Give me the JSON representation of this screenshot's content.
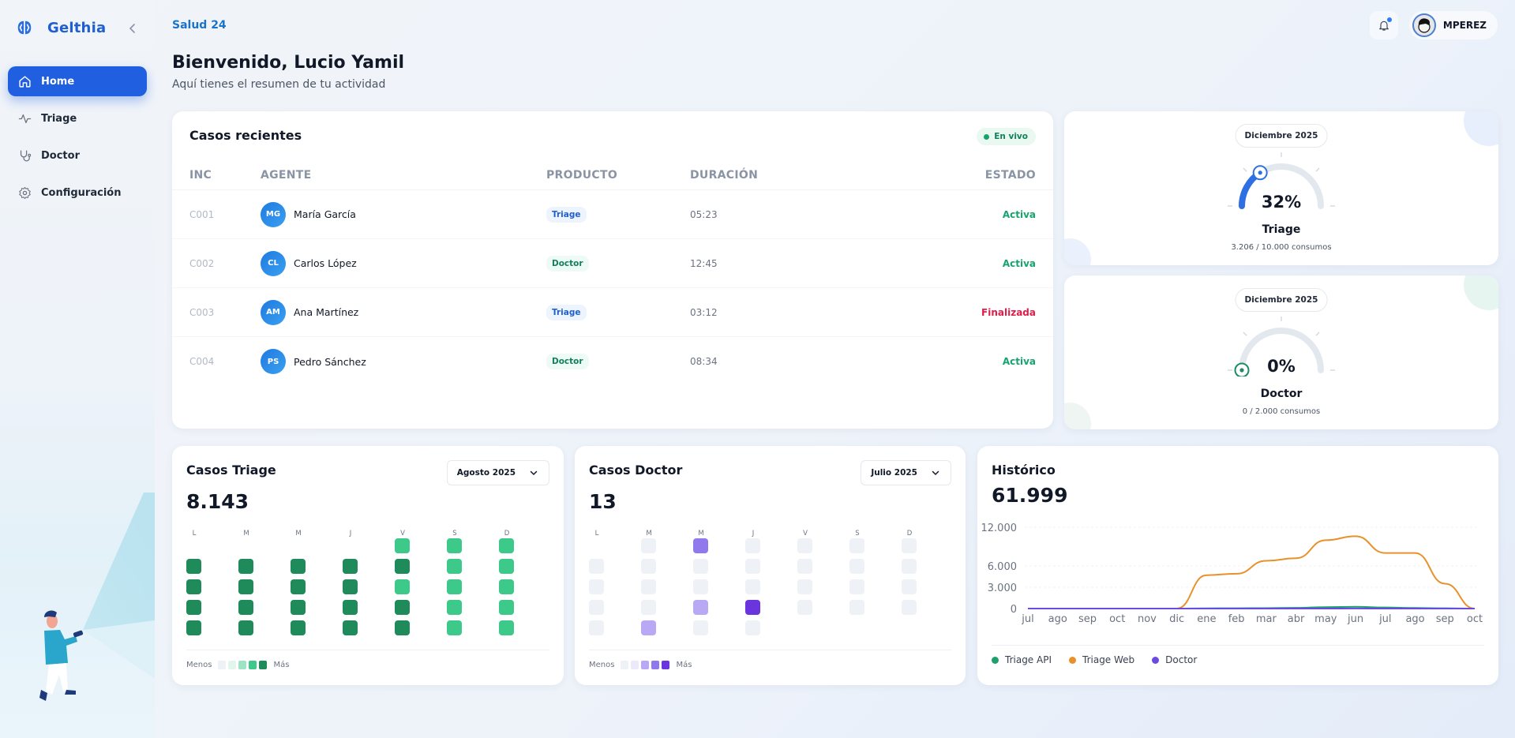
{
  "sidebar": {
    "brand": "Gelthia",
    "collapse_icon": "chevron-left-icon",
    "items": [
      {
        "label": "Home",
        "icon": "home-icon",
        "active": true
      },
      {
        "label": "Triage",
        "icon": "activity-icon",
        "active": false
      },
      {
        "label": "Doctor",
        "icon": "stethoscope-icon",
        "active": false
      },
      {
        "label": "Configuración",
        "icon": "gear-icon",
        "active": false
      }
    ]
  },
  "header": {
    "org": "Salud 24",
    "title": "Bienvenido, Lucio Yamil",
    "subtitle": "Aquí tienes el resumen de tu actividad",
    "user": "MPEREZ",
    "notifications_icon": "bell-icon",
    "has_notifications": true
  },
  "recent": {
    "title": "Casos recientes",
    "live_label": "En vivo",
    "columns": [
      "INC",
      "AGENTE",
      "PRODUCTO",
      "DURACIÓN",
      "ESTADO"
    ],
    "rows": [
      {
        "inc": "C001",
        "initials": "MG",
        "agent": "María García",
        "product": "Triage",
        "duration": "05:23",
        "state": "Activa"
      },
      {
        "inc": "C002",
        "initials": "CL",
        "agent": "Carlos López",
        "product": "Doctor",
        "duration": "12:45",
        "state": "Activa"
      },
      {
        "inc": "C003",
        "initials": "AM",
        "agent": "Ana Martínez",
        "product": "Triage",
        "duration": "03:12",
        "state": "Finalizada"
      },
      {
        "inc": "C004",
        "initials": "PS",
        "agent": "Pedro Sánchez",
        "product": "Doctor",
        "duration": "08:34",
        "state": "Activa"
      }
    ]
  },
  "gauges": [
    {
      "month": "Diciembre 2025",
      "percent": "32%",
      "value": 32,
      "label": "Triage",
      "usage": "3.206 / 10.000 consumos",
      "color": "#2f6fe4"
    },
    {
      "month": "Diciembre 2025",
      "percent": "0%",
      "value": 0,
      "label": "Doctor",
      "usage": "0 / 2.000 consumos",
      "color": "#1f8a64"
    }
  ],
  "triage_cases": {
    "title": "Casos Triage",
    "total": "8.143",
    "month": "Agosto 2025",
    "days": [
      "L",
      "M",
      "M",
      "J",
      "V",
      "S",
      "D"
    ],
    "legend_less": "Menos",
    "legend_more": "Más",
    "legend_colors": [
      "#eef1f5",
      "#e3f6ee",
      "#9fe3c5",
      "#3dc98a",
      "#1f8a5a"
    ],
    "weeks": [
      [
        null,
        null,
        null,
        null,
        3,
        3,
        3
      ],
      [
        4,
        4,
        4,
        4,
        4,
        3,
        3
      ],
      [
        4,
        4,
        4,
        4,
        3,
        3,
        3
      ],
      [
        4,
        4,
        4,
        4,
        4,
        3,
        3
      ],
      [
        4,
        4,
        4,
        4,
        4,
        3,
        3
      ]
    ]
  },
  "doctor_cases": {
    "title": "Casos Doctor",
    "total": "13",
    "month": "Julio 2025",
    "days": [
      "L",
      "M",
      "M",
      "J",
      "V",
      "S",
      "D"
    ],
    "legend_less": "Menos",
    "legend_more": "Más",
    "legend_colors": [
      "#eef1f5",
      "#ece9fb",
      "#b9a9f4",
      "#9079ec",
      "#6a34de"
    ],
    "weeks": [
      [
        null,
        0,
        3,
        0,
        0,
        0,
        0
      ],
      [
        0,
        0,
        0,
        0,
        0,
        0,
        0
      ],
      [
        0,
        0,
        0,
        0,
        0,
        0,
        0
      ],
      [
        0,
        0,
        2,
        4,
        0,
        0,
        0
      ],
      [
        0,
        2,
        0,
        0,
        null,
        null,
        null
      ]
    ]
  },
  "history": {
    "title": "Histórico",
    "total": "61.999"
  },
  "chart_data": {
    "type": "line",
    "title": "Histórico",
    "x": [
      "jul",
      "ago",
      "sep",
      "oct",
      "nov",
      "dic",
      "ene",
      "feb",
      "mar",
      "abr",
      "may",
      "jun",
      "jul",
      "ago",
      "sep",
      "oct"
    ],
    "yticks": [
      "0",
      "3.000",
      "6.000",
      "12.000"
    ],
    "ylim": [
      0,
      12000
    ],
    "series": [
      {
        "name": "Triage API",
        "color": "#1f9e6e",
        "values": [
          0,
          0,
          0,
          0,
          0,
          0,
          30,
          40,
          60,
          100,
          200,
          250,
          150,
          80,
          40,
          0
        ]
      },
      {
        "name": "Triage Web",
        "color": "#e8912a",
        "values": [
          0,
          0,
          0,
          0,
          0,
          0,
          4700,
          4900,
          6800,
          7200,
          10000,
          10600,
          8000,
          8000,
          3500,
          0
        ]
      },
      {
        "name": "Doctor",
        "color": "#6a4be0",
        "values": [
          0,
          0,
          0,
          0,
          0,
          0,
          0,
          0,
          0,
          0,
          3,
          8,
          2,
          0,
          0,
          0
        ]
      }
    ],
    "legend_position": "bottom",
    "grid": true
  }
}
